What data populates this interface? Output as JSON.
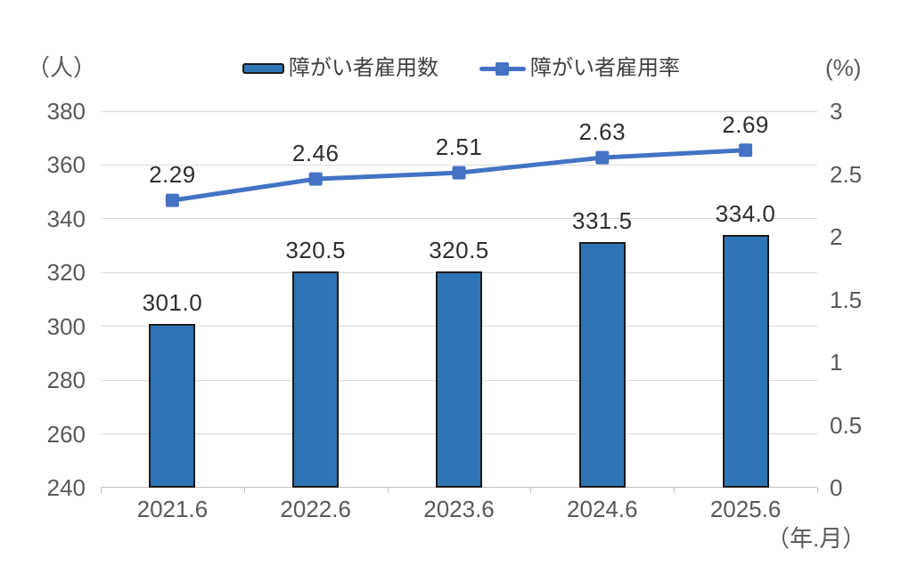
{
  "units": {
    "left": "（人）",
    "right": "(%)",
    "x": "（年.月）"
  },
  "legend": [
    {
      "label": "障がい者雇用数",
      "type": "bar"
    },
    {
      "label": "障がい者雇用率",
      "type": "line"
    }
  ],
  "chart_data": {
    "type": "bar+line",
    "categories": [
      "2021.6",
      "2022.6",
      "2023.6",
      "2024.6",
      "2025.6"
    ],
    "series": [
      {
        "name": "障がい者雇用数",
        "type": "bar",
        "axis": "left",
        "values": [
          301.0,
          320.5,
          320.5,
          331.5,
          334.0
        ],
        "labels": [
          "301.0",
          "320.5",
          "320.5",
          "331.5",
          "334.0"
        ]
      },
      {
        "name": "障がい者雇用率",
        "type": "line",
        "axis": "right",
        "values": [
          2.29,
          2.46,
          2.51,
          2.63,
          2.69
        ],
        "labels": [
          "2.29",
          "2.46",
          "2.51",
          "2.63",
          "2.69"
        ]
      }
    ],
    "left_axis": {
      "unit": "（人）",
      "min": 240,
      "max": 380,
      "ticks": [
        380,
        360,
        340,
        320,
        300,
        280,
        260,
        240
      ]
    },
    "right_axis": {
      "unit": "(%)",
      "min": 0,
      "max": 3,
      "ticks": [
        3,
        2.5,
        2,
        1.5,
        1,
        0.5,
        0
      ]
    },
    "x_axis_unit": "（年.月）",
    "grid": true,
    "legend_position": "top"
  },
  "colors": {
    "bar_fill": "#2e75b6",
    "bar_border": "#1b1b1b",
    "line": "#4472c4",
    "grid": "#d9d9d9",
    "axis_line": "#bfbfbf",
    "axis_text": "#595959",
    "data_label": "#2e2e2e",
    "legend_text": "#404040"
  }
}
